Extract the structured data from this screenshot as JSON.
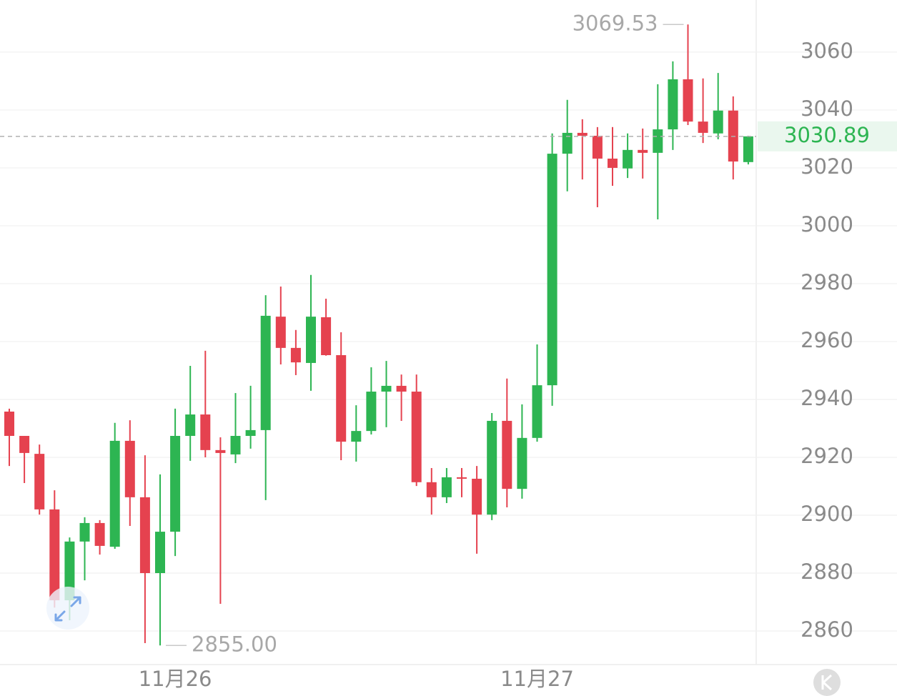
{
  "chart_data": {
    "type": "candlestick",
    "categories": [
      null,
      null,
      null,
      null,
      null,
      null,
      null,
      null,
      null,
      null,
      null,
      "11月26",
      null,
      null,
      null,
      null,
      null,
      null,
      null,
      null,
      null,
      null,
      null,
      null,
      null,
      null,
      null,
      null,
      null,
      null,
      null,
      null,
      null,
      null,
      null,
      "11月27",
      null,
      null,
      null,
      null,
      null,
      null,
      null,
      null,
      null,
      null,
      null,
      null,
      null,
      null
    ],
    "open": [
      2935.8,
      2927.4,
      2921.2,
      2902.0,
      2870.6,
      2890.9,
      2897.3,
      2889.1,
      2925.7,
      2906.2,
      2880.0,
      2894.3,
      2927.4,
      2934.8,
      2922.5,
      2921.0,
      2927.4,
      2929.4,
      2968.6,
      2957.8,
      2952.6,
      2968.4,
      2955.3,
      2925.4,
      2929.1,
      2942.7,
      2944.7,
      2942.7,
      2911.4,
      2906.2,
      2913.1,
      2912.6,
      2900.2,
      2932.6,
      2909.1,
      2926.7,
      2944.9,
      3024.9,
      3032.1,
      3031.1,
      3023.2,
      3019.8,
      3026.2,
      3025.2,
      3033.3,
      3050.6,
      3036.0,
      3031.9,
      3039.8,
      3022.0
    ],
    "high": [
      2936.8,
      2927.4,
      2924.4,
      2908.6,
      2892.3,
      2899.3,
      2898.3,
      2931.9,
      2932.8,
      2920.7,
      2914.1,
      2936.8,
      2951.6,
      2956.8,
      2926.9,
      2942.2,
      2944.7,
      2976.0,
      2979.0,
      2964.0,
      2983.0,
      2974.8,
      2963.2,
      2938.0,
      2951.1,
      2953.3,
      2948.6,
      2948.6,
      2916.3,
      2916.3,
      2916.3,
      2917.0,
      2935.3,
      2947.2,
      2938.3,
      2959.0,
      3031.9,
      3043.5,
      3036.8,
      3034.1,
      3034.1,
      3031.9,
      3033.6,
      3048.9,
      3056.8,
      3069.53,
      3050.9,
      3052.8,
      3044.7,
      3031.1
    ],
    "low": [
      2917.0,
      2911.1,
      2900.2,
      2868.1,
      2863.7,
      2877.5,
      2886.4,
      2888.4,
      2896.3,
      2855.8,
      2855.0,
      2885.9,
      2918.8,
      2920.0,
      2869.4,
      2918.0,
      2923.0,
      2905.2,
      2952.1,
      2948.4,
      2943.0,
      2955.1,
      2919.0,
      2918.5,
      2927.9,
      2930.4,
      2932.6,
      2910.1,
      2900.2,
      2904.2,
      2906.2,
      2886.7,
      2898.3,
      2902.7,
      2905.7,
      2925.4,
      2937.8,
      3011.9,
      3016.0,
      3006.4,
      3013.8,
      3016.5,
      3016.3,
      3002.2,
      3026.2,
      3034.8,
      3028.6,
      3029.9,
      3016.0,
      3021.2
    ],
    "close": [
      2927.4,
      2921.5,
      2902.0,
      2870.6,
      2890.9,
      2897.3,
      2889.4,
      2925.7,
      2906.2,
      2880.0,
      2894.3,
      2927.4,
      2934.8,
      2922.5,
      2921.5,
      2927.4,
      2929.4,
      2968.9,
      2957.8,
      2952.8,
      2968.6,
      2955.3,
      2925.4,
      2929.1,
      2942.7,
      2944.7,
      2942.7,
      2911.4,
      2906.2,
      2913.1,
      2912.6,
      2900.2,
      2932.6,
      2909.1,
      2926.7,
      2944.9,
      3024.9,
      3032.1,
      3031.1,
      3023.2,
      3020.0,
      3026.2,
      3025.2,
      3033.3,
      3050.6,
      3036.0,
      3032.1,
      3039.8,
      3022.2,
      3030.89
    ],
    "up_color": "#2db552",
    "down_color": "#e5424f",
    "ylim": [
      2848.4,
      3078.0
    ],
    "yticks": [
      2860,
      2880,
      2900,
      2920,
      2940,
      2960,
      2980,
      3000,
      3020,
      3040,
      3060
    ],
    "grid": true,
    "max_label": "3069.53",
    "min_label": "2855.00",
    "last_price_label": "3030.89"
  }
}
